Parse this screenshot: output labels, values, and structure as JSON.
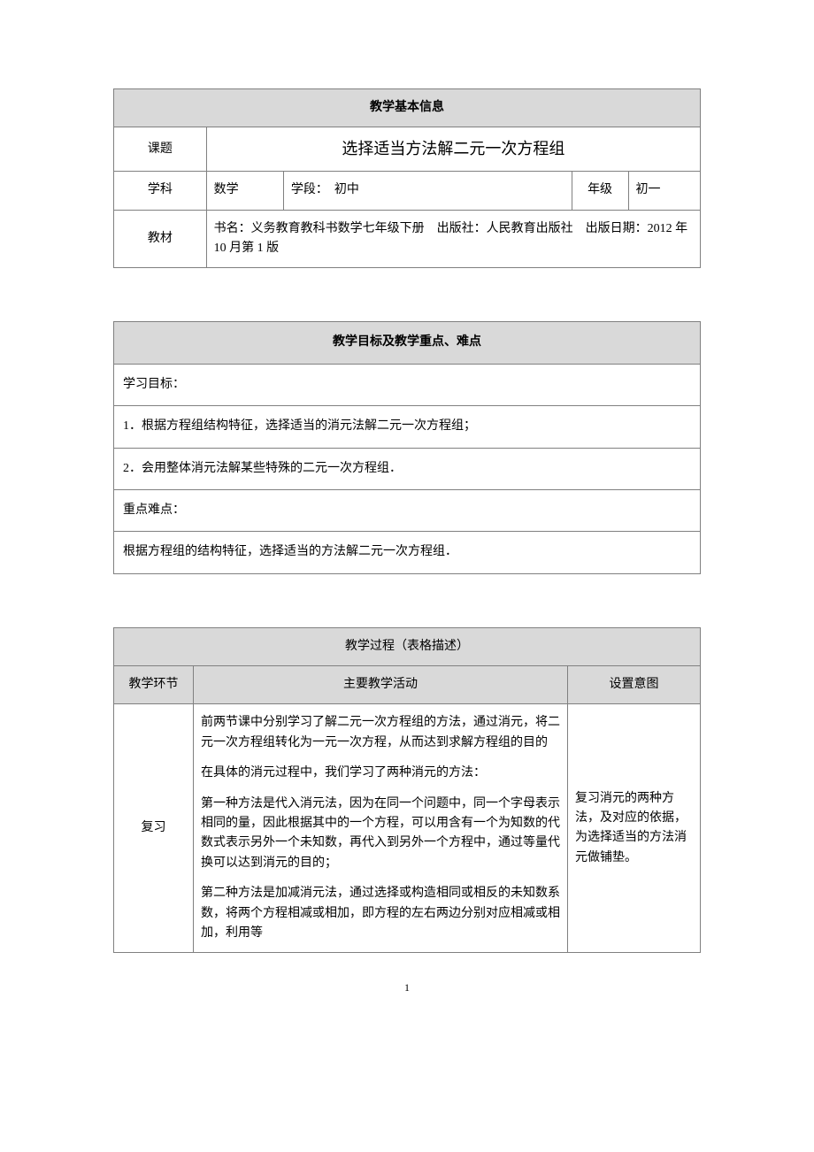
{
  "basic_info": {
    "header": "教学基本信息",
    "topic_label": "课题",
    "topic_value": "选择适当方法解二元一次方程组",
    "subject_label": "学科",
    "subject_value": "数学",
    "stage_label": "学段：",
    "stage_value": "初中",
    "grade_label": "年级",
    "grade_value": "初一",
    "textbook_label": "教材",
    "textbook_value": "书名：义务教育教科书数学七年级下册　出版社：人民教育出版社　出版日期：2012 年 10 月第 1 版"
  },
  "goals": {
    "header": "教学目标及教学重点、难点",
    "objectives_label": "学习目标：",
    "objective_1": "1．根据方程组结构特征，选择适当的消元法解二元一次方程组；",
    "objective_2": "2．会用整体消元法解某些特殊的二元一次方程组．",
    "keypoints_label": "重点难点：",
    "keypoints_value": "根据方程组的结构特征，选择适当的方法解二元一次方程组．"
  },
  "process": {
    "header": "教学过程（表格描述）",
    "col_phase": "教学环节",
    "col_activity": "主要教学活动",
    "col_intent": "设置意图",
    "row1": {
      "phase": "复习",
      "activity_p1": "前两节课中分别学习了解二元一次方程组的方法，通过消元，将二元一次方程组转化为一元一次方程，从而达到求解方程组的目的",
      "activity_p2": "在具体的消元过程中，我们学习了两种消元的方法：",
      "activity_p3": "第一种方法是代入消元法，因为在同一个问题中，同一个字母表示相同的量，因此根据其中的一个方程，可以用含有一个为知数的代数式表示另外一个未知数，再代入到另外一个方程中，通过等量代换可以达到消元的目的；",
      "activity_p4": "第二种方法是加减消元法，通过选择或构造相同或相反的未知数系数，将两个方程相减或相加，即方程的左右两边分别对应相减或相加，利用等",
      "intent": "复习消元的两种方法，及对应的依据，为选择适当的方法消元做铺垫。"
    }
  },
  "page_number": "1",
  "styles": {
    "header_bg": "#d9d9d9",
    "border_color": "#808080",
    "text_color": "#000000",
    "font_size_body": 14,
    "font_size_title": 18,
    "font_size_page": 12
  }
}
